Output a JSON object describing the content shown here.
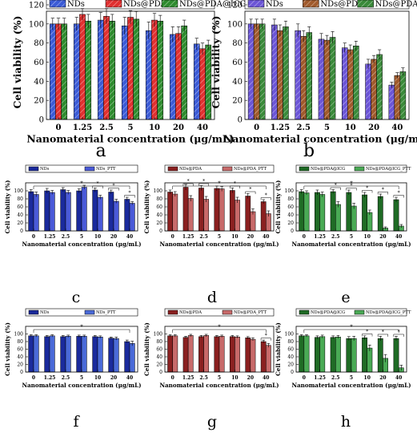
{
  "chart_data": [
    {
      "type": "bar",
      "panel": "a",
      "ylabel": "Cell viability (%)",
      "xlabel": "Nanomaterial concentration (μg/mL)",
      "ylim": [
        0,
        120
      ],
      "yticks": [
        0,
        20,
        40,
        60,
        80,
        100,
        120
      ],
      "categories": [
        "0",
        "1.25",
        "2.5",
        "5",
        "10",
        "20",
        "40"
      ],
      "legend": "top",
      "series": [
        {
          "name": "NDs",
          "color": "#3b5bd6",
          "pattern": "hatch",
          "values": [
            100,
            100,
            104,
            98,
            93,
            89,
            79
          ],
          "errors": [
            6,
            7,
            8,
            9,
            9,
            8,
            6
          ]
        },
        {
          "name": "NDs@PDA",
          "color": "#e03030",
          "pattern": "hatch",
          "values": [
            100,
            110,
            108,
            107,
            104,
            90,
            74
          ],
          "errors": [
            6,
            6,
            8,
            7,
            7,
            7,
            6
          ]
        },
        {
          "name": "NDs@PDA@ICG",
          "color": "#2e8b2e",
          "pattern": "hatch",
          "values": [
            100,
            103,
            103,
            105,
            103,
            98,
            78
          ],
          "errors": [
            6,
            7,
            7,
            8,
            6,
            6,
            5
          ]
        }
      ]
    },
    {
      "type": "bar",
      "panel": "b",
      "ylabel": "Cell viability (%)",
      "xlabel": "Nanomaterial concentration (μg/mL)",
      "ylim": [
        0,
        120
      ],
      "yticks": [
        0,
        20,
        40,
        60,
        80,
        100,
        120
      ],
      "categories": [
        "0",
        "1.25",
        "2.5",
        "5",
        "10",
        "20",
        "40"
      ],
      "legend": "top",
      "series": [
        {
          "name": "NDs",
          "color": "#6b55d6",
          "pattern": "hatch",
          "values": [
            100,
            99,
            93,
            84,
            75,
            58,
            36
          ],
          "errors": [
            5,
            6,
            7,
            6,
            5,
            5,
            3
          ]
        },
        {
          "name": "NDs@PD",
          "color": "#a05a2c",
          "pattern": "hatch",
          "values": [
            100,
            93,
            87,
            83,
            73,
            63,
            46
          ],
          "errors": [
            5,
            6,
            6,
            5,
            5,
            4,
            3
          ]
        },
        {
          "name": "NDs@PDA@ICG",
          "color": "#3a8a3a",
          "pattern": "hatch",
          "values": [
            100,
            97,
            91,
            86,
            77,
            68,
            50
          ],
          "errors": [
            5,
            6,
            6,
            6,
            5,
            5,
            4
          ]
        }
      ]
    },
    {
      "type": "bar",
      "panel": "c",
      "ylabel": "Cell viability (%)",
      "xlabel": "Nanomaterial concentration (μg/mL)",
      "ylim": [
        0,
        120
      ],
      "yticks": [
        0,
        20,
        40,
        60,
        80,
        100
      ],
      "categories": [
        "0",
        "1.25",
        "2.5",
        "5",
        "10",
        "20",
        "40"
      ],
      "legend": "top",
      "significance": "*",
      "series": [
        {
          "name": "NDs",
          "color": "#1a2a9c",
          "pattern": "solid",
          "values": [
            98,
            100,
            103,
            100,
            102,
            97,
            79
          ],
          "errors": [
            5,
            6,
            5,
            5,
            5,
            5,
            5
          ]
        },
        {
          "name": "NDs_PTT",
          "color": "#4a5ad8",
          "pattern": "solid",
          "values": [
            91,
            96,
            96,
            109,
            84,
            74,
            69
          ],
          "errors": [
            6,
            5,
            5,
            5,
            5,
            5,
            4
          ]
        }
      ]
    },
    {
      "type": "bar",
      "panel": "d",
      "ylabel": "Cell viability (%)",
      "xlabel": "Nanomaterial concentration (μg/mL)",
      "ylim": [
        0,
        120
      ],
      "yticks": [
        0,
        20,
        40,
        60,
        80,
        100
      ],
      "categories": [
        "0",
        "1.25",
        "2.5",
        "5",
        "10",
        "20",
        "40"
      ],
      "legend": "top",
      "significance": "*",
      "series": [
        {
          "name": "NDs@PDA",
          "color": "#8a2020",
          "pattern": "solid",
          "values": [
            97,
            109,
            107,
            106,
            101,
            87,
            73
          ],
          "errors": [
            5,
            7,
            6,
            6,
            6,
            6,
            5
          ]
        },
        {
          "name": "NDs@PDA_PTT",
          "color": "#c86a6a",
          "pattern": "solid",
          "values": [
            92,
            81,
            79,
            105,
            77,
            48,
            43
          ],
          "errors": [
            6,
            7,
            7,
            6,
            7,
            7,
            7
          ]
        }
      ]
    },
    {
      "type": "bar",
      "panel": "e",
      "ylabel": "Cell viability (%)",
      "xlabel": "Nanomaterial concentration (μg/mL)",
      "ylim": [
        0,
        120
      ],
      "yticks": [
        0,
        20,
        40,
        60,
        80,
        100
      ],
      "categories": [
        "0",
        "1.25",
        "2.5",
        "5",
        "10",
        "20",
        "40"
      ],
      "legend": "top",
      "significance": "*",
      "series": [
        {
          "name": "NDs@PDA@ICG",
          "color": "#1f6b25",
          "pattern": "solid",
          "values": [
            98,
            96,
            98,
            96,
            90,
            86,
            78
          ],
          "errors": [
            5,
            6,
            5,
            6,
            6,
            6,
            6
          ]
        },
        {
          "name": "NDs@PDA@ICG_PTT",
          "color": "#4aaa55",
          "pattern": "solid",
          "values": [
            95,
            91,
            66,
            62,
            46,
            7,
            12
          ],
          "errors": [
            5,
            6,
            7,
            7,
            6,
            3,
            4
          ]
        }
      ]
    },
    {
      "type": "bar",
      "panel": "f",
      "ylabel": "Cell viability (%)",
      "xlabel": "Nanomaterial concentration (μg/mL)",
      "ylim": [
        0,
        120
      ],
      "yticks": [
        0,
        20,
        40,
        60,
        80,
        100
      ],
      "categories": [
        "0",
        "1.25",
        "2.5",
        "5",
        "10",
        "20",
        "40"
      ],
      "legend": "top",
      "significance": "*",
      "series": [
        {
          "name": "NDs",
          "color": "#1a2a9c",
          "pattern": "solid",
          "values": [
            95,
            93,
            93,
            94,
            93,
            89,
            80
          ],
          "errors": [
            3,
            3,
            3,
            3,
            3,
            3,
            4
          ]
        },
        {
          "name": "NDs_PTT",
          "color": "#4a6ad8",
          "pattern": "solid",
          "values": [
            95,
            95,
            94,
            94,
            92,
            88,
            75
          ],
          "errors": [
            3,
            3,
            3,
            3,
            3,
            4,
            6
          ]
        }
      ]
    },
    {
      "type": "bar",
      "panel": "g",
      "ylabel": "Cell viability (%)",
      "xlabel": "Nanomaterial concentration (μg/mL)",
      "ylim": [
        0,
        120
      ],
      "yticks": [
        0,
        20,
        40,
        60,
        80,
        100
      ],
      "categories": [
        "0",
        "1.25",
        "2.5",
        "5",
        "10",
        "20",
        "40"
      ],
      "legend": "top",
      "significance": "*",
      "series": [
        {
          "name": "NDs@PDA",
          "color": "#8a2020",
          "pattern": "solid",
          "values": [
            95,
            91,
            93,
            93,
            93,
            90,
            80
          ],
          "errors": [
            3,
            3,
            3,
            3,
            3,
            3,
            4
          ]
        },
        {
          "name": "NDs@PDA_PTT",
          "color": "#c86a6a",
          "pattern": "solid",
          "values": [
            95,
            96,
            96,
            94,
            92,
            86,
            70
          ],
          "errors": [
            3,
            3,
            3,
            3,
            3,
            4,
            5
          ]
        }
      ]
    },
    {
      "type": "bar",
      "panel": "h",
      "ylabel": "Cell viability (%)",
      "xlabel": "Nanomaterial concentration (μg/mL)",
      "ylim": [
        0,
        120
      ],
      "yticks": [
        0,
        20,
        40,
        60,
        80,
        100
      ],
      "categories": [
        "0",
        "1.25",
        "2.5",
        "5",
        "10",
        "20",
        "40"
      ],
      "legend": "top",
      "significance": "*",
      "series": [
        {
          "name": "NDs@PDA@ICG",
          "color": "#1f6b25",
          "pattern": "solid",
          "values": [
            95,
            91,
            91,
            88,
            90,
            88,
            88
          ],
          "errors": [
            3,
            4,
            4,
            5,
            5,
            6,
            6
          ]
        },
        {
          "name": "NDs@PDA@ICG_PTT",
          "color": "#4aaa55",
          "pattern": "solid",
          "values": [
            95,
            93,
            92,
            88,
            63,
            36,
            11
          ],
          "errors": [
            3,
            4,
            4,
            6,
            8,
            10,
            7
          ]
        }
      ]
    }
  ]
}
